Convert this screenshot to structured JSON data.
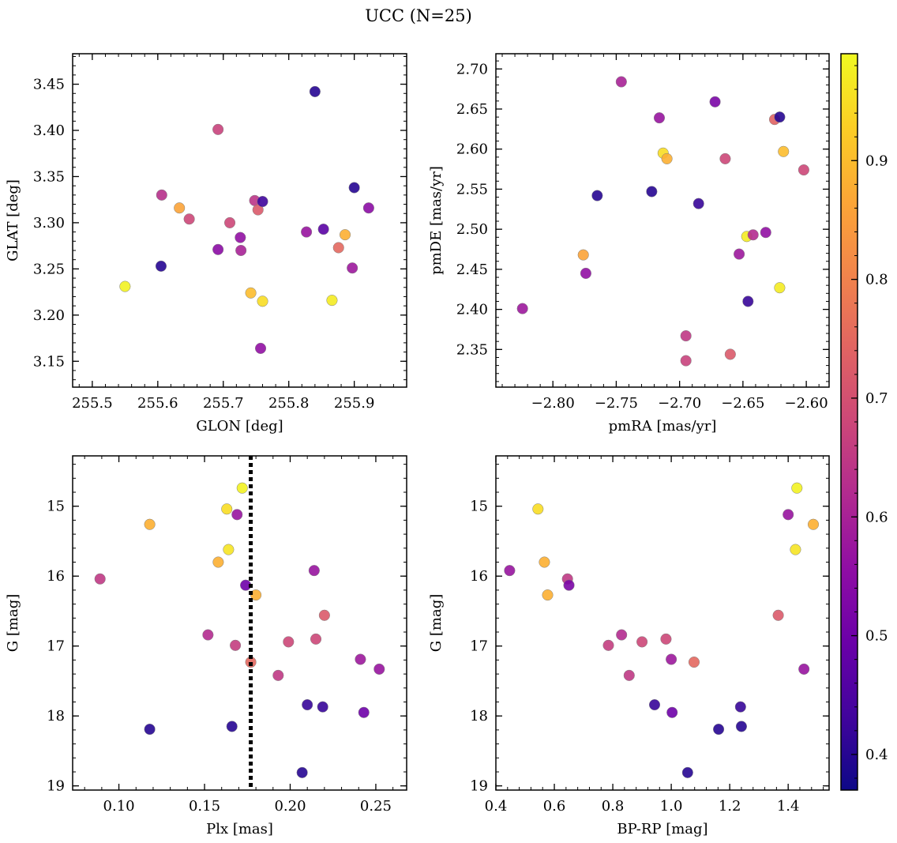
{
  "figure": {
    "title": "UCC (N=25)"
  },
  "colorbar": {
    "range": [
      0.37,
      0.99
    ],
    "ticks": [
      "0.4",
      "0.5",
      "0.6",
      "0.7",
      "0.8",
      "0.9"
    ],
    "tick_values": [
      0.4,
      0.5,
      0.6,
      0.7,
      0.8,
      0.9
    ],
    "colormap": "plasma"
  },
  "chart_data": [
    {
      "type": "scatter",
      "xlabel": "GLON [deg]",
      "ylabel": "GLAT [deg]",
      "xlim": [
        255.47,
        255.98
      ],
      "ylim": [
        3.122,
        3.483
      ],
      "y_inverted": false,
      "xticks": [
        255.5,
        255.6,
        255.7,
        255.8,
        255.9
      ],
      "xtick_labels": [
        "255.5",
        "255.6",
        "255.7",
        "255.8",
        "255.9"
      ],
      "yticks": [
        3.15,
        3.2,
        3.25,
        3.3,
        3.35,
        3.4,
        3.45
      ],
      "ytick_labels": [
        "3.15",
        "3.20",
        "3.25",
        "3.30",
        "3.35",
        "3.40",
        "3.45"
      ],
      "points": [
        {
          "x": 255.55,
          "y": 3.231,
          "c": 0.98
        },
        {
          "x": 255.605,
          "y": 3.253,
          "c": 0.4
        },
        {
          "x": 255.606,
          "y": 3.33,
          "c": 0.63
        },
        {
          "x": 255.633,
          "y": 3.316,
          "c": 0.86
        },
        {
          "x": 255.648,
          "y": 3.304,
          "c": 0.68
        },
        {
          "x": 255.692,
          "y": 3.401,
          "c": 0.67
        },
        {
          "x": 255.692,
          "y": 3.271,
          "c": 0.55
        },
        {
          "x": 255.71,
          "y": 3.3,
          "c": 0.68
        },
        {
          "x": 255.726,
          "y": 3.284,
          "c": 0.56
        },
        {
          "x": 255.727,
          "y": 3.27,
          "c": 0.6
        },
        {
          "x": 255.742,
          "y": 3.224,
          "c": 0.9
        },
        {
          "x": 255.748,
          "y": 3.324,
          "c": 0.64
        },
        {
          "x": 255.753,
          "y": 3.314,
          "c": 0.72
        },
        {
          "x": 255.757,
          "y": 3.164,
          "c": 0.56
        },
        {
          "x": 255.76,
          "y": 3.323,
          "c": 0.43
        },
        {
          "x": 255.76,
          "y": 3.215,
          "c": 0.95
        },
        {
          "x": 255.827,
          "y": 3.29,
          "c": 0.57
        },
        {
          "x": 255.84,
          "y": 3.442,
          "c": 0.4
        },
        {
          "x": 255.853,
          "y": 3.293,
          "c": 0.47
        },
        {
          "x": 255.866,
          "y": 3.216,
          "c": 0.97
        },
        {
          "x": 255.876,
          "y": 3.273,
          "c": 0.75
        },
        {
          "x": 255.886,
          "y": 3.287,
          "c": 0.88
        },
        {
          "x": 255.897,
          "y": 3.251,
          "c": 0.58
        },
        {
          "x": 255.9,
          "y": 3.338,
          "c": 0.4
        },
        {
          "x": 255.922,
          "y": 3.316,
          "c": 0.55
        }
      ]
    },
    {
      "type": "scatter",
      "xlabel": "pmRA [mas/yr]",
      "ylabel": "pmDE [mas/yr]",
      "xlim": [
        -2.845,
        -2.582
      ],
      "ylim": [
        2.303,
        2.719
      ],
      "y_inverted": false,
      "xticks": [
        -2.8,
        -2.75,
        -2.7,
        -2.65,
        -2.6
      ],
      "xtick_labels": [
        "−2.80",
        "−2.75",
        "−2.70",
        "−2.65",
        "−2.60"
      ],
      "yticks": [
        2.35,
        2.4,
        2.45,
        2.5,
        2.55,
        2.6,
        2.65,
        2.7
      ],
      "ytick_labels": [
        "2.35",
        "2.40",
        "2.45",
        "2.50",
        "2.55",
        "2.60",
        "2.65",
        "2.70"
      ],
      "points": [
        {
          "x": -2.824,
          "y": 2.401,
          "c": 0.58
        },
        {
          "x": -2.776,
          "y": 2.468,
          "c": 0.86
        },
        {
          "x": -2.774,
          "y": 2.445,
          "c": 0.56
        },
        {
          "x": -2.765,
          "y": 2.542,
          "c": 0.4
        },
        {
          "x": -2.746,
          "y": 2.684,
          "c": 0.6
        },
        {
          "x": -2.722,
          "y": 2.547,
          "c": 0.4
        },
        {
          "x": -2.716,
          "y": 2.639,
          "c": 0.57
        },
        {
          "x": -2.713,
          "y": 2.595,
          "c": 0.95
        },
        {
          "x": -2.71,
          "y": 2.588,
          "c": 0.88
        },
        {
          "x": -2.695,
          "y": 2.367,
          "c": 0.65
        },
        {
          "x": -2.695,
          "y": 2.336,
          "c": 0.67
        },
        {
          "x": -2.685,
          "y": 2.532,
          "c": 0.42
        },
        {
          "x": -2.672,
          "y": 2.659,
          "c": 0.52
        },
        {
          "x": -2.664,
          "y": 2.588,
          "c": 0.68
        },
        {
          "x": -2.66,
          "y": 2.344,
          "c": 0.72
        },
        {
          "x": -2.653,
          "y": 2.469,
          "c": 0.58
        },
        {
          "x": -2.647,
          "y": 2.491,
          "c": 0.97
        },
        {
          "x": -2.646,
          "y": 2.41,
          "c": 0.42
        },
        {
          "x": -2.642,
          "y": 2.493,
          "c": 0.62
        },
        {
          "x": -2.632,
          "y": 2.496,
          "c": 0.56
        },
        {
          "x": -2.625,
          "y": 2.637,
          "c": 0.74
        },
        {
          "x": -2.621,
          "y": 2.64,
          "c": 0.4
        },
        {
          "x": -2.621,
          "y": 2.427,
          "c": 0.97
        },
        {
          "x": -2.618,
          "y": 2.597,
          "c": 0.9
        },
        {
          "x": -2.602,
          "y": 2.574,
          "c": 0.68
        }
      ]
    },
    {
      "type": "scatter",
      "xlabel": "Plx [mas]",
      "ylabel": "G [mag]",
      "xlim": [
        0.073,
        0.268
      ],
      "ylim": [
        19.06,
        14.28
      ],
      "y_inverted": true,
      "xticks": [
        0.1,
        0.15,
        0.2,
        0.25
      ],
      "xtick_labels": [
        "0.10",
        "0.15",
        "0.20",
        "0.25"
      ],
      "yticks": [
        15,
        16,
        17,
        18,
        19
      ],
      "ytick_labels": [
        "15",
        "16",
        "17",
        "18",
        "19"
      ],
      "vline": {
        "x": 0.177,
        "style": "dotted"
      },
      "points": [
        {
          "x": 0.089,
          "y": 16.04,
          "c": 0.65
        },
        {
          "x": 0.118,
          "y": 15.26,
          "c": 0.88
        },
        {
          "x": 0.118,
          "y": 18.19,
          "c": 0.4
        },
        {
          "x": 0.152,
          "y": 16.84,
          "c": 0.62
        },
        {
          "x": 0.158,
          "y": 15.8,
          "c": 0.88
        },
        {
          "x": 0.163,
          "y": 15.04,
          "c": 0.95
        },
        {
          "x": 0.164,
          "y": 15.62,
          "c": 0.96
        },
        {
          "x": 0.166,
          "y": 18.15,
          "c": 0.4
        },
        {
          "x": 0.168,
          "y": 16.99,
          "c": 0.66
        },
        {
          "x": 0.169,
          "y": 15.12,
          "c": 0.57
        },
        {
          "x": 0.172,
          "y": 14.74,
          "c": 0.98
        },
        {
          "x": 0.174,
          "y": 16.13,
          "c": 0.5
        },
        {
          "x": 0.177,
          "y": 17.23,
          "c": 0.75
        },
        {
          "x": 0.18,
          "y": 16.27,
          "c": 0.88
        },
        {
          "x": 0.193,
          "y": 17.42,
          "c": 0.65
        },
        {
          "x": 0.199,
          "y": 16.94,
          "c": 0.68
        },
        {
          "x": 0.207,
          "y": 18.81,
          "c": 0.4
        },
        {
          "x": 0.21,
          "y": 17.84,
          "c": 0.42
        },
        {
          "x": 0.214,
          "y": 15.92,
          "c": 0.57
        },
        {
          "x": 0.215,
          "y": 16.9,
          "c": 0.68
        },
        {
          "x": 0.219,
          "y": 17.87,
          "c": 0.42
        },
        {
          "x": 0.22,
          "y": 16.56,
          "c": 0.72
        },
        {
          "x": 0.241,
          "y": 17.19,
          "c": 0.58
        },
        {
          "x": 0.243,
          "y": 17.95,
          "c": 0.5
        },
        {
          "x": 0.252,
          "y": 17.33,
          "c": 0.57
        }
      ]
    },
    {
      "type": "scatter",
      "xlabel": "BP-RP [mag]",
      "ylabel": "G [mag]",
      "xlim": [
        0.4,
        1.54
      ],
      "ylim": [
        19.06,
        14.28
      ],
      "y_inverted": true,
      "xticks": [
        0.4,
        0.6,
        0.8,
        1.0,
        1.2,
        1.4
      ],
      "xtick_labels": [
        "0.4",
        "0.6",
        "0.8",
        "1.0",
        "1.2",
        "1.4"
      ],
      "yticks": [
        15,
        16,
        17,
        18,
        19
      ],
      "ytick_labels": [
        "15",
        "16",
        "17",
        "18",
        "19"
      ],
      "points": [
        {
          "x": 0.447,
          "y": 15.92,
          "c": 0.57
        },
        {
          "x": 0.544,
          "y": 15.04,
          "c": 0.95
        },
        {
          "x": 0.566,
          "y": 15.8,
          "c": 0.88
        },
        {
          "x": 0.577,
          "y": 16.27,
          "c": 0.88
        },
        {
          "x": 0.645,
          "y": 16.04,
          "c": 0.65
        },
        {
          "x": 0.65,
          "y": 16.13,
          "c": 0.52
        },
        {
          "x": 0.785,
          "y": 16.99,
          "c": 0.66
        },
        {
          "x": 0.83,
          "y": 16.84,
          "c": 0.62
        },
        {
          "x": 0.856,
          "y": 17.42,
          "c": 0.65
        },
        {
          "x": 0.9,
          "y": 16.94,
          "c": 0.68
        },
        {
          "x": 0.943,
          "y": 17.84,
          "c": 0.42
        },
        {
          "x": 0.982,
          "y": 16.9,
          "c": 0.68
        },
        {
          "x": 1.0,
          "y": 17.19,
          "c": 0.58
        },
        {
          "x": 1.003,
          "y": 17.95,
          "c": 0.5
        },
        {
          "x": 1.056,
          "y": 18.81,
          "c": 0.4
        },
        {
          "x": 1.078,
          "y": 17.23,
          "c": 0.75
        },
        {
          "x": 1.162,
          "y": 18.19,
          "c": 0.4
        },
        {
          "x": 1.237,
          "y": 17.87,
          "c": 0.42
        },
        {
          "x": 1.24,
          "y": 18.15,
          "c": 0.4
        },
        {
          "x": 1.366,
          "y": 16.56,
          "c": 0.72
        },
        {
          "x": 1.4,
          "y": 15.12,
          "c": 0.57
        },
        {
          "x": 1.425,
          "y": 15.62,
          "c": 0.96
        },
        {
          "x": 1.43,
          "y": 14.74,
          "c": 0.98
        },
        {
          "x": 1.454,
          "y": 17.33,
          "c": 0.57
        },
        {
          "x": 1.486,
          "y": 15.26,
          "c": 0.88
        }
      ]
    }
  ]
}
